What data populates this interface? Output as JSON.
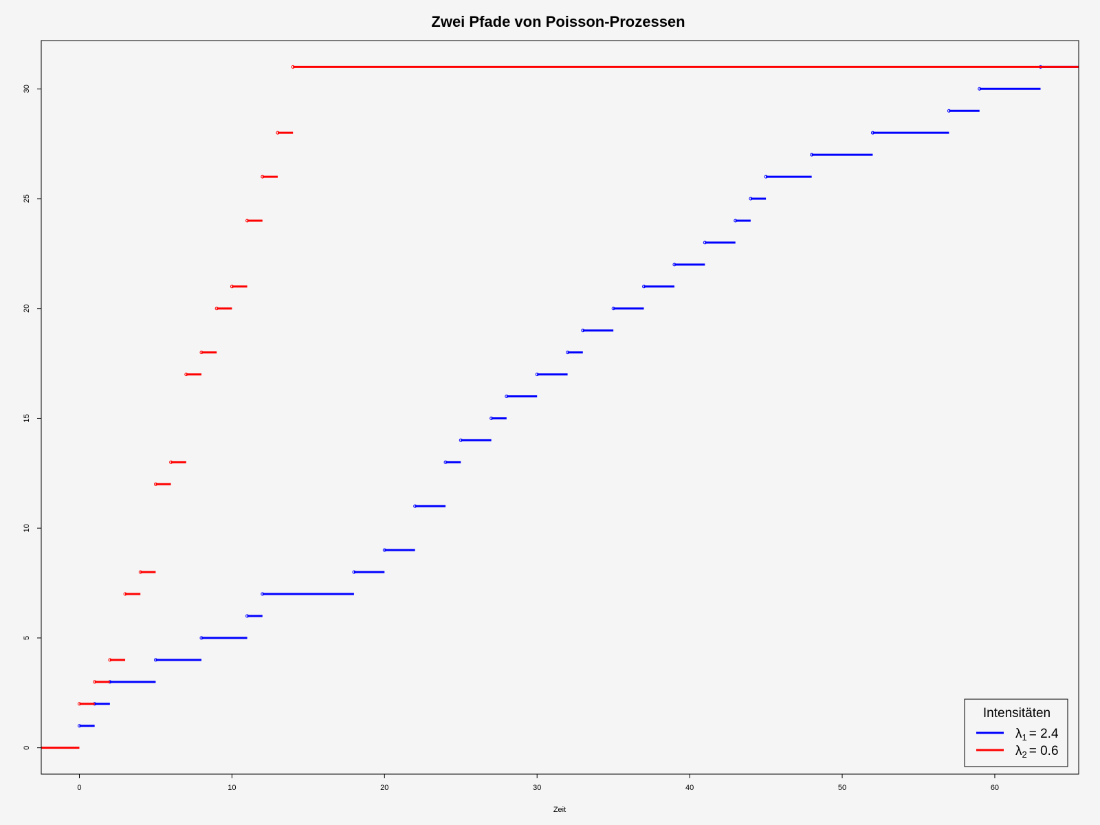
{
  "chart_data": {
    "type": "line",
    "step": true,
    "title": "Zwei Pfade von Poisson-Prozessen",
    "xlabel": "Zeit",
    "ylabel": "",
    "xlim": [
      -2.5,
      65.5
    ],
    "ylim": [
      -1.2,
      32.2
    ],
    "xticks": [
      0,
      10,
      20,
      30,
      40,
      50,
      60
    ],
    "yticks": [
      0,
      5,
      10,
      15,
      20,
      25,
      30
    ],
    "legend": {
      "title": "Intensitäten",
      "position": "bottom-right",
      "entries": [
        {
          "symbol": "λ",
          "sub": "1",
          "text": "= 2.4",
          "color": "#0000ff"
        },
        {
          "symbol": "λ",
          "sub": "2",
          "text": "= 0.6",
          "color": "#ff0000"
        }
      ]
    },
    "series": [
      {
        "color": "#0000ff",
        "points": [
          [
            0,
            1
          ],
          [
            1,
            2
          ],
          [
            2,
            3
          ],
          [
            5,
            4
          ],
          [
            8,
            5
          ],
          [
            11,
            6
          ],
          [
            12,
            7
          ],
          [
            18,
            8
          ],
          [
            20,
            9
          ],
          [
            22,
            11
          ],
          [
            24,
            13
          ],
          [
            25,
            14
          ],
          [
            27,
            15
          ],
          [
            28,
            16
          ],
          [
            30,
            17
          ],
          [
            32,
            18
          ],
          [
            33,
            19
          ],
          [
            35,
            20
          ],
          [
            37,
            21
          ],
          [
            39,
            22
          ],
          [
            41,
            23
          ],
          [
            43,
            24
          ],
          [
            44,
            25
          ],
          [
            45,
            26
          ],
          [
            48,
            27
          ],
          [
            52,
            28
          ],
          [
            57,
            29
          ],
          [
            59,
            30
          ],
          [
            63,
            31
          ]
        ]
      },
      {
        "color": "#ff0000",
        "initial": [
          -2.5,
          0,
          0
        ],
        "points": [
          [
            0,
            2
          ],
          [
            1,
            3
          ],
          [
            2,
            4
          ],
          [
            3,
            7
          ],
          [
            4,
            8
          ],
          [
            5,
            12
          ],
          [
            6,
            13
          ],
          [
            7,
            17
          ],
          [
            8,
            18
          ],
          [
            9,
            20
          ],
          [
            10,
            21
          ],
          [
            11,
            24
          ],
          [
            12,
            26
          ],
          [
            13,
            28
          ],
          [
            14,
            31
          ]
        ]
      }
    ]
  }
}
